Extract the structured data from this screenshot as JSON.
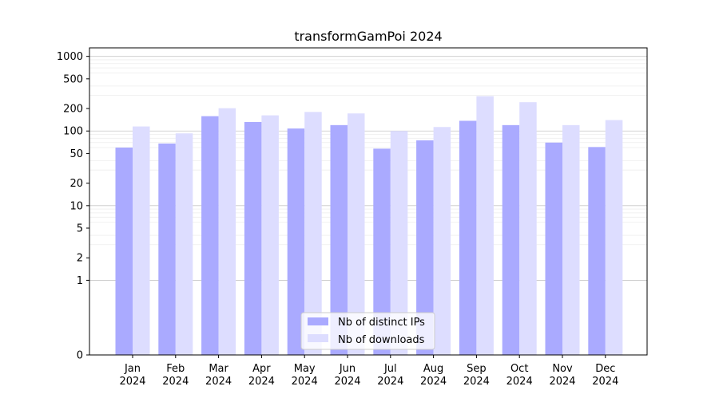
{
  "chart_data": {
    "type": "bar",
    "title": "transformGamPoi 2024",
    "xlabel": "",
    "ylabel": "",
    "y_scale": "symlog",
    "ylim": [
      0,
      1300
    ],
    "y_ticks": [
      0,
      1,
      2,
      5,
      10,
      20,
      50,
      100,
      200,
      500,
      1000
    ],
    "y_tick_labels": [
      "0",
      "1",
      "2",
      "5",
      "10",
      "20",
      "50",
      "100",
      "200",
      "500",
      "1000"
    ],
    "categories": [
      [
        "Jan",
        "2024"
      ],
      [
        "Feb",
        "2024"
      ],
      [
        "Mar",
        "2024"
      ],
      [
        "Apr",
        "2024"
      ],
      [
        "May",
        "2024"
      ],
      [
        "Jun",
        "2024"
      ],
      [
        "Jul",
        "2024"
      ],
      [
        "Aug",
        "2024"
      ],
      [
        "Sep",
        "2024"
      ],
      [
        "Oct",
        "2024"
      ],
      [
        "Nov",
        "2024"
      ],
      [
        "Dec",
        "2024"
      ]
    ],
    "series": [
      {
        "name": "Nb of distinct IPs",
        "color": "#aaaaff",
        "values": [
          60,
          68,
          158,
          132,
          108,
          120,
          58,
          75,
          137,
          120,
          70,
          61
        ]
      },
      {
        "name": "Nb of downloads",
        "color": "#ddddff",
        "values": [
          115,
          93,
          202,
          162,
          180,
          172,
          100,
          113,
          293,
          243,
          120,
          140
        ]
      }
    ],
    "grid": true,
    "legend_position": "bottom-center"
  }
}
